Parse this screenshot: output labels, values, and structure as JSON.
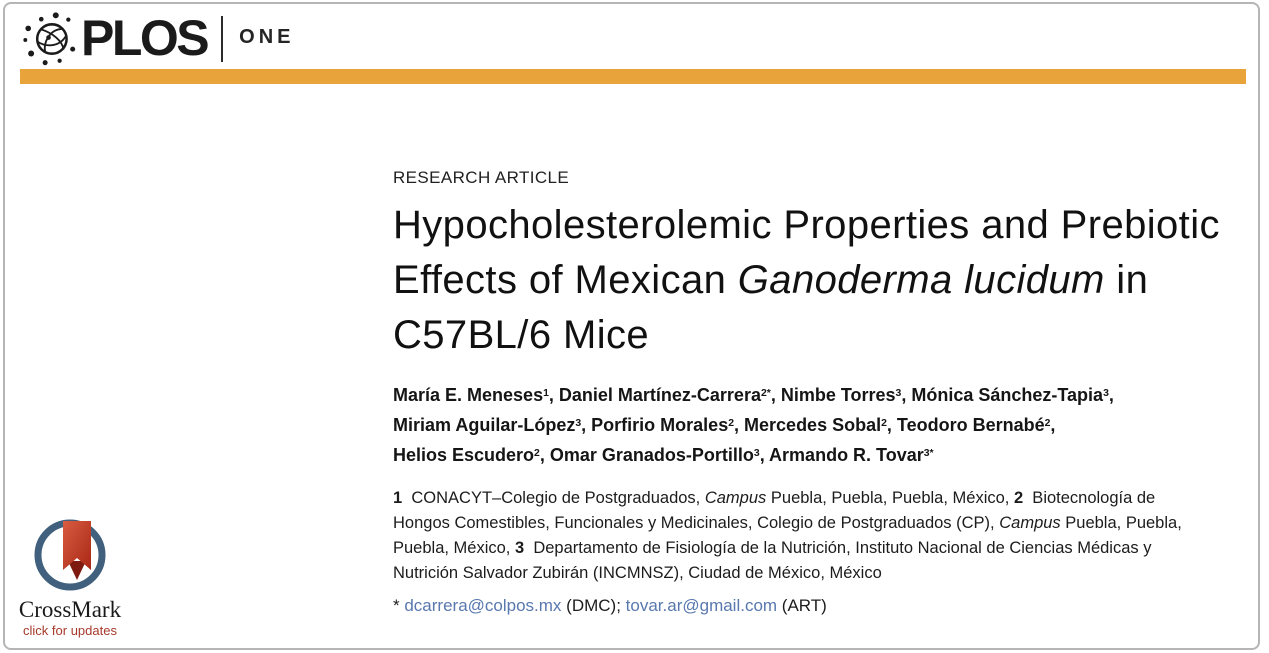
{
  "brand": {
    "plos": "PLOS",
    "one": "ONE",
    "globe_icon": "plos-globe-icon"
  },
  "article": {
    "type_label": "RESEARCH ARTICLE",
    "title_segments": [
      {
        "t": "Hypocholesterolemic Properties and Prebiotic\nEffects of Mexican "
      },
      {
        "t": "Ganoderma lucidum",
        "i": true
      },
      {
        "t": " in\nC57BL/6 Mice"
      }
    ],
    "authors_segments": [
      {
        "t": "María E. Meneses",
        "sup": "1"
      },
      {
        "t": ", Daniel Martínez-Carrera",
        "sup": "2*"
      },
      {
        "t": ", Nimbe Torres",
        "sup": "3"
      },
      {
        "t": ", Mónica Sánchez-Tapia",
        "sup": "3"
      },
      {
        "t": ",\nMiriam Aguilar-López",
        "sup": "3"
      },
      {
        "t": ", Porfirio Morales",
        "sup": "2"
      },
      {
        "t": ", Mercedes Sobal",
        "sup": "2"
      },
      {
        "t": ", Teodoro Bernabé",
        "sup": "2"
      },
      {
        "t": ",\nHelios Escudero",
        "sup": "2"
      },
      {
        "t": ", Omar Granados-Portillo",
        "sup": "3"
      },
      {
        "t": ", Armando R. Tovar",
        "sup": "3*"
      }
    ],
    "affiliations_segments": [
      {
        "t": "1",
        "b": true
      },
      {
        "t": "  CONACYT–Colegio de Postgraduados, "
      },
      {
        "t": "Campus",
        "i": true
      },
      {
        "t": " Puebla, Puebla, Puebla, México, "
      },
      {
        "t": "2",
        "b": true
      },
      {
        "t": "  Biotecnología de\nHongos Comestibles, Funcionales y Medicinales, Colegio de Postgraduados (CP), "
      },
      {
        "t": "Campus",
        "i": true
      },
      {
        "t": " Puebla, Puebla,\nPuebla, México, "
      },
      {
        "t": "3",
        "b": true
      },
      {
        "t": "  Departamento de Fisiología de la Nutrición, Instituto Nacional de Ciencias Médicas y\nNutrición Salvador Zubirán (INCMNSZ), Ciudad de México, México"
      }
    ],
    "correspondence_segments": [
      {
        "t": "* "
      },
      {
        "t": "dcarrera@colpos.mx",
        "link": true
      },
      {
        "t": " (DMC); "
      },
      {
        "t": "tovar.ar@gmail.com",
        "link": true
      },
      {
        "t": " (ART)"
      }
    ]
  },
  "crossmark": {
    "title": "CrossMark",
    "subtitle": "click for updates",
    "icon": "crossmark-ribbon-badge-icon"
  },
  "colors": {
    "accent_bar": "#E8A33B",
    "link": "#5878AE",
    "crossmark_ring": "#40607D",
    "crossmark_ribbon": "#C23B28",
    "crossmark_subtitle": "#A63A2B",
    "frame_border": "#B5B5B5",
    "text": "#1A1A1A"
  }
}
